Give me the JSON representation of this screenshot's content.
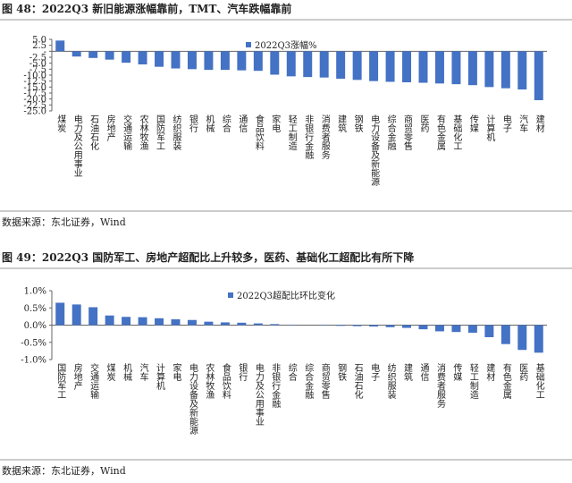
{
  "chart_data": [
    {
      "type": "bar",
      "title": "图 48：2022Q3 新旧能源涨幅靠前，TMT、汽车跌幅靠前",
      "source": "数据来源：东北证券，Wind",
      "series": [
        {
          "name": "2022Q3涨幅%",
          "color": "#4472c4",
          "values": [
            4.5,
            -2.2,
            -2.8,
            -3.5,
            -4.8,
            -5.5,
            -6.5,
            -7.2,
            -7.5,
            -7.8,
            -7.8,
            -8.0,
            -8.2,
            -9.8,
            -10.5,
            -10.8,
            -11.0,
            -11.5,
            -12.0,
            -12.5,
            -12.8,
            -13.0,
            -13.2,
            -13.5,
            -13.8,
            -14.2,
            -15.0,
            -15.5,
            -16.0,
            -20.5
          ]
        }
      ],
      "categories": [
        "煤炭",
        "电力及公用事业",
        "石油石化",
        "房地产",
        "交通运输",
        "农林牧渔",
        "国防军工",
        "纺织服装",
        "银行",
        "机械",
        "综合",
        "通信",
        "食品饮料",
        "家电",
        "轻工制造",
        "非银行金融",
        "消费者服务",
        "建筑",
        "钢铁",
        "电力设备及新能源",
        "综合金融",
        "商贸零售",
        "医药",
        "有色金属",
        "基础化工",
        "传媒",
        "计算机",
        "电子",
        "汽车",
        "建材"
      ],
      "ylim": [
        -25,
        5
      ],
      "yticks": [
        {
          "value": 5,
          "label": "5.0"
        },
        {
          "value": 2.5,
          "label": "2.5"
        },
        {
          "value": 0,
          "label": "-"
        },
        {
          "value": -2.5,
          "label": "-2.5"
        },
        {
          "value": -5,
          "label": "-5.0"
        },
        {
          "value": -7.5,
          "label": "-7.5"
        },
        {
          "value": -10,
          "label": "-10.0"
        },
        {
          "value": -12.5,
          "label": "-12.5"
        },
        {
          "value": -15,
          "label": "-15.0"
        },
        {
          "value": -17.5,
          "label": "-17.5"
        },
        {
          "value": -20,
          "label": "-20.0"
        },
        {
          "value": -22.5,
          "label": "-22.5"
        },
        {
          "value": -25,
          "label": "-25.0"
        }
      ]
    },
    {
      "type": "bar",
      "title": "图 49：2022Q3 国防军工、房地产超配比上升较多，医药、基础化工超配比有所下降",
      "source": "数据来源：东北证券，Wind",
      "series": [
        {
          "name": "2022Q3超配比环比变化",
          "color": "#4472c4",
          "values": [
            0.65,
            0.6,
            0.52,
            0.28,
            0.24,
            0.23,
            0.2,
            0.17,
            0.15,
            0.1,
            0.08,
            0.07,
            0.05,
            0.03,
            0.01,
            0.0,
            -0.01,
            -0.02,
            -0.03,
            -0.04,
            -0.06,
            -0.08,
            -0.12,
            -0.18,
            -0.2,
            -0.22,
            -0.35,
            -0.55,
            -0.72,
            -0.8
          ]
        }
      ],
      "categories": [
        "国防军工",
        "房地产",
        "交通运输",
        "煤炭",
        "机械",
        "汽车",
        "计算机",
        "家电",
        "电力设备及新能源",
        "农林牧渔",
        "食品饮料",
        "银行",
        "电力及公用事业",
        "非银行金融",
        "综合",
        "综合金融",
        "商贸零售",
        "钢铁",
        "石油石化",
        "电子",
        "纺织服装",
        "建筑",
        "通信",
        "消费者服务",
        "传媒",
        "轻工制造",
        "建材",
        "有色金属",
        "医药",
        "基础化工"
      ],
      "ylim": [
        -1,
        1
      ],
      "yticks": [
        {
          "value": 1,
          "label": "1.0%"
        },
        {
          "value": 0.5,
          "label": "0.5%"
        },
        {
          "value": 0,
          "label": "0.0%"
        },
        {
          "value": -0.5,
          "label": "-0.5%"
        },
        {
          "value": -1,
          "label": "-1.0%"
        }
      ]
    }
  ]
}
